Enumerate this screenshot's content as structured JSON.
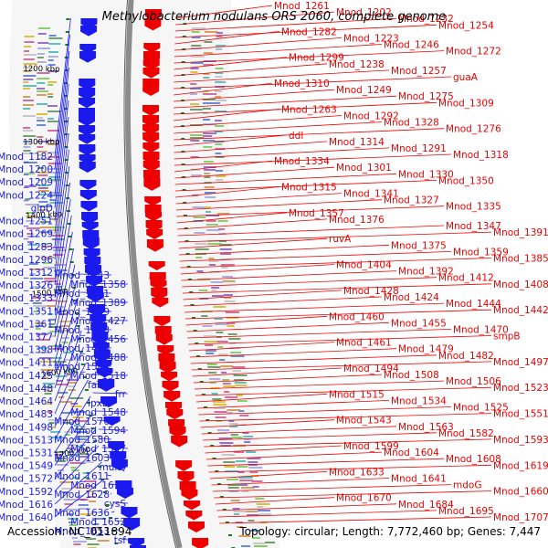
{
  "title": "Methylobacterium nodulans ORS 2060, complete genome",
  "footer": {
    "accession": "Accession: NC_011894",
    "summary": "Topology: circular; Length: 7,772,460 bp; Genes: 7,447"
  },
  "colors": {
    "forward": "#ee0000",
    "reverse": "#1a1aee",
    "backbone": "#8c8c8c",
    "tick": "#1a7a1a"
  },
  "kbp_labels": [
    "1200 kbp",
    "1300 kbp",
    "1400 kbp",
    "1500 kbp",
    "1600 kbp",
    "1700 kbp"
  ],
  "left_labels": [
    "Mnod_1182",
    "Mnod_1200",
    "Mnod_1209",
    "Mnod_1224",
    "glpD",
    "Mnod_1251",
    "Mnod_1269",
    "Mnod_1283",
    "Mnod_1296",
    "Mnod_1312",
    "Mnod_1326",
    "Mnod_1333",
    "Mnod_1351",
    "Mnod_1361",
    "Mnod_1377",
    "Mnod_1398",
    "Mnod_1411",
    "Mnod_1425",
    "Mnod_1448",
    "Mnod_1464",
    "Mnod_1483",
    "Mnod_1498",
    "Mnod_1513",
    "Mnod_1531",
    "Mnod_1549",
    "Mnod_1572",
    "Mnod_1592",
    "Mnod_1616",
    "Mnod_1640"
  ],
  "mid_labels": [
    "Mnod_1343",
    "Mnod_1358",
    "Mnod_1371",
    "Mnod_1389",
    "Mnod_1409",
    "Mnod_1427",
    "Mnod_1443",
    "Mnod_1456",
    "Mnod_1474",
    "Mnod_1488",
    "Mnod_1504",
    "Mnod_1518",
    "fabZ",
    "frr",
    "lpxD",
    "Mnod_1548",
    "Mnod_1570",
    "Mnod_1594",
    "Mnod_1580",
    "Mnod_1597",
    "Mnod_1603",
    "murQ",
    "Mnod_1611",
    "Mnod_1612",
    "Mnod_1628",
    "cysS",
    "Mnod_1636",
    "Mnod_1652",
    "Mnod_1653",
    "tsf"
  ],
  "right_labels": [
    "Mnod_1261",
    "Mnod_1202",
    "Mnod_1232",
    "Mnod_1254",
    "Mnod_1282",
    "Mnod_1223",
    "Mnod_1246",
    "Mnod_1272",
    "Mnod_1299",
    "Mnod_1238",
    "Mnod_1257",
    "guaA",
    "Mnod_1310",
    "Mnod_1249",
    "Mnod_1275",
    "Mnod_1309",
    "Mnod_1263",
    "Mnod_1292",
    "Mnod_1328",
    "Mnod_1276",
    "ddl",
    "Mnod_1314",
    "Mnod_1291",
    "Mnod_1318",
    "Mnod_1334",
    "Mnod_1301",
    "Mnod_1330",
    "Mnod_1350",
    "Mnod_1315",
    "Mnod_1341",
    "Mnod_1327",
    "Mnod_1335",
    "Mnod_1357",
    "Mnod_1376",
    "Mnod_1347",
    "Mnod_1391",
    "ruvA",
    "Mnod_1375",
    "Mnod_1359",
    "Mnod_1385",
    "Mnod_1404",
    "Mnod_1392",
    "Mnod_1412",
    "Mnod_1408",
    "Mnod_1428",
    "Mnod_1424",
    "Mnod_1444",
    "Mnod_1442",
    "Mnod_1460",
    "Mnod_1455",
    "Mnod_1470",
    "smpB",
    "Mnod_1461",
    "Mnod_1479",
    "Mnod_1482",
    "Mnod_1497",
    "Mnod_1494",
    "Mnod_1508",
    "Mnod_1506",
    "Mnod_1523",
    "Mnod_1515",
    "Mnod_1534",
    "Mnod_1525",
    "Mnod_1551",
    "Mnod_1543",
    "Mnod_1563",
    "Mnod_1582",
    "Mnod_1593",
    "Mnod_1599",
    "Mnod_1604",
    "Mnod_1608",
    "Mnod_1619",
    "Mnod_1633",
    "Mnod_1641",
    "mdoG",
    "Mnod_1660",
    "Mnod_1670",
    "Mnod_1684",
    "Mnod_1695",
    "Mnod_1707"
  ]
}
